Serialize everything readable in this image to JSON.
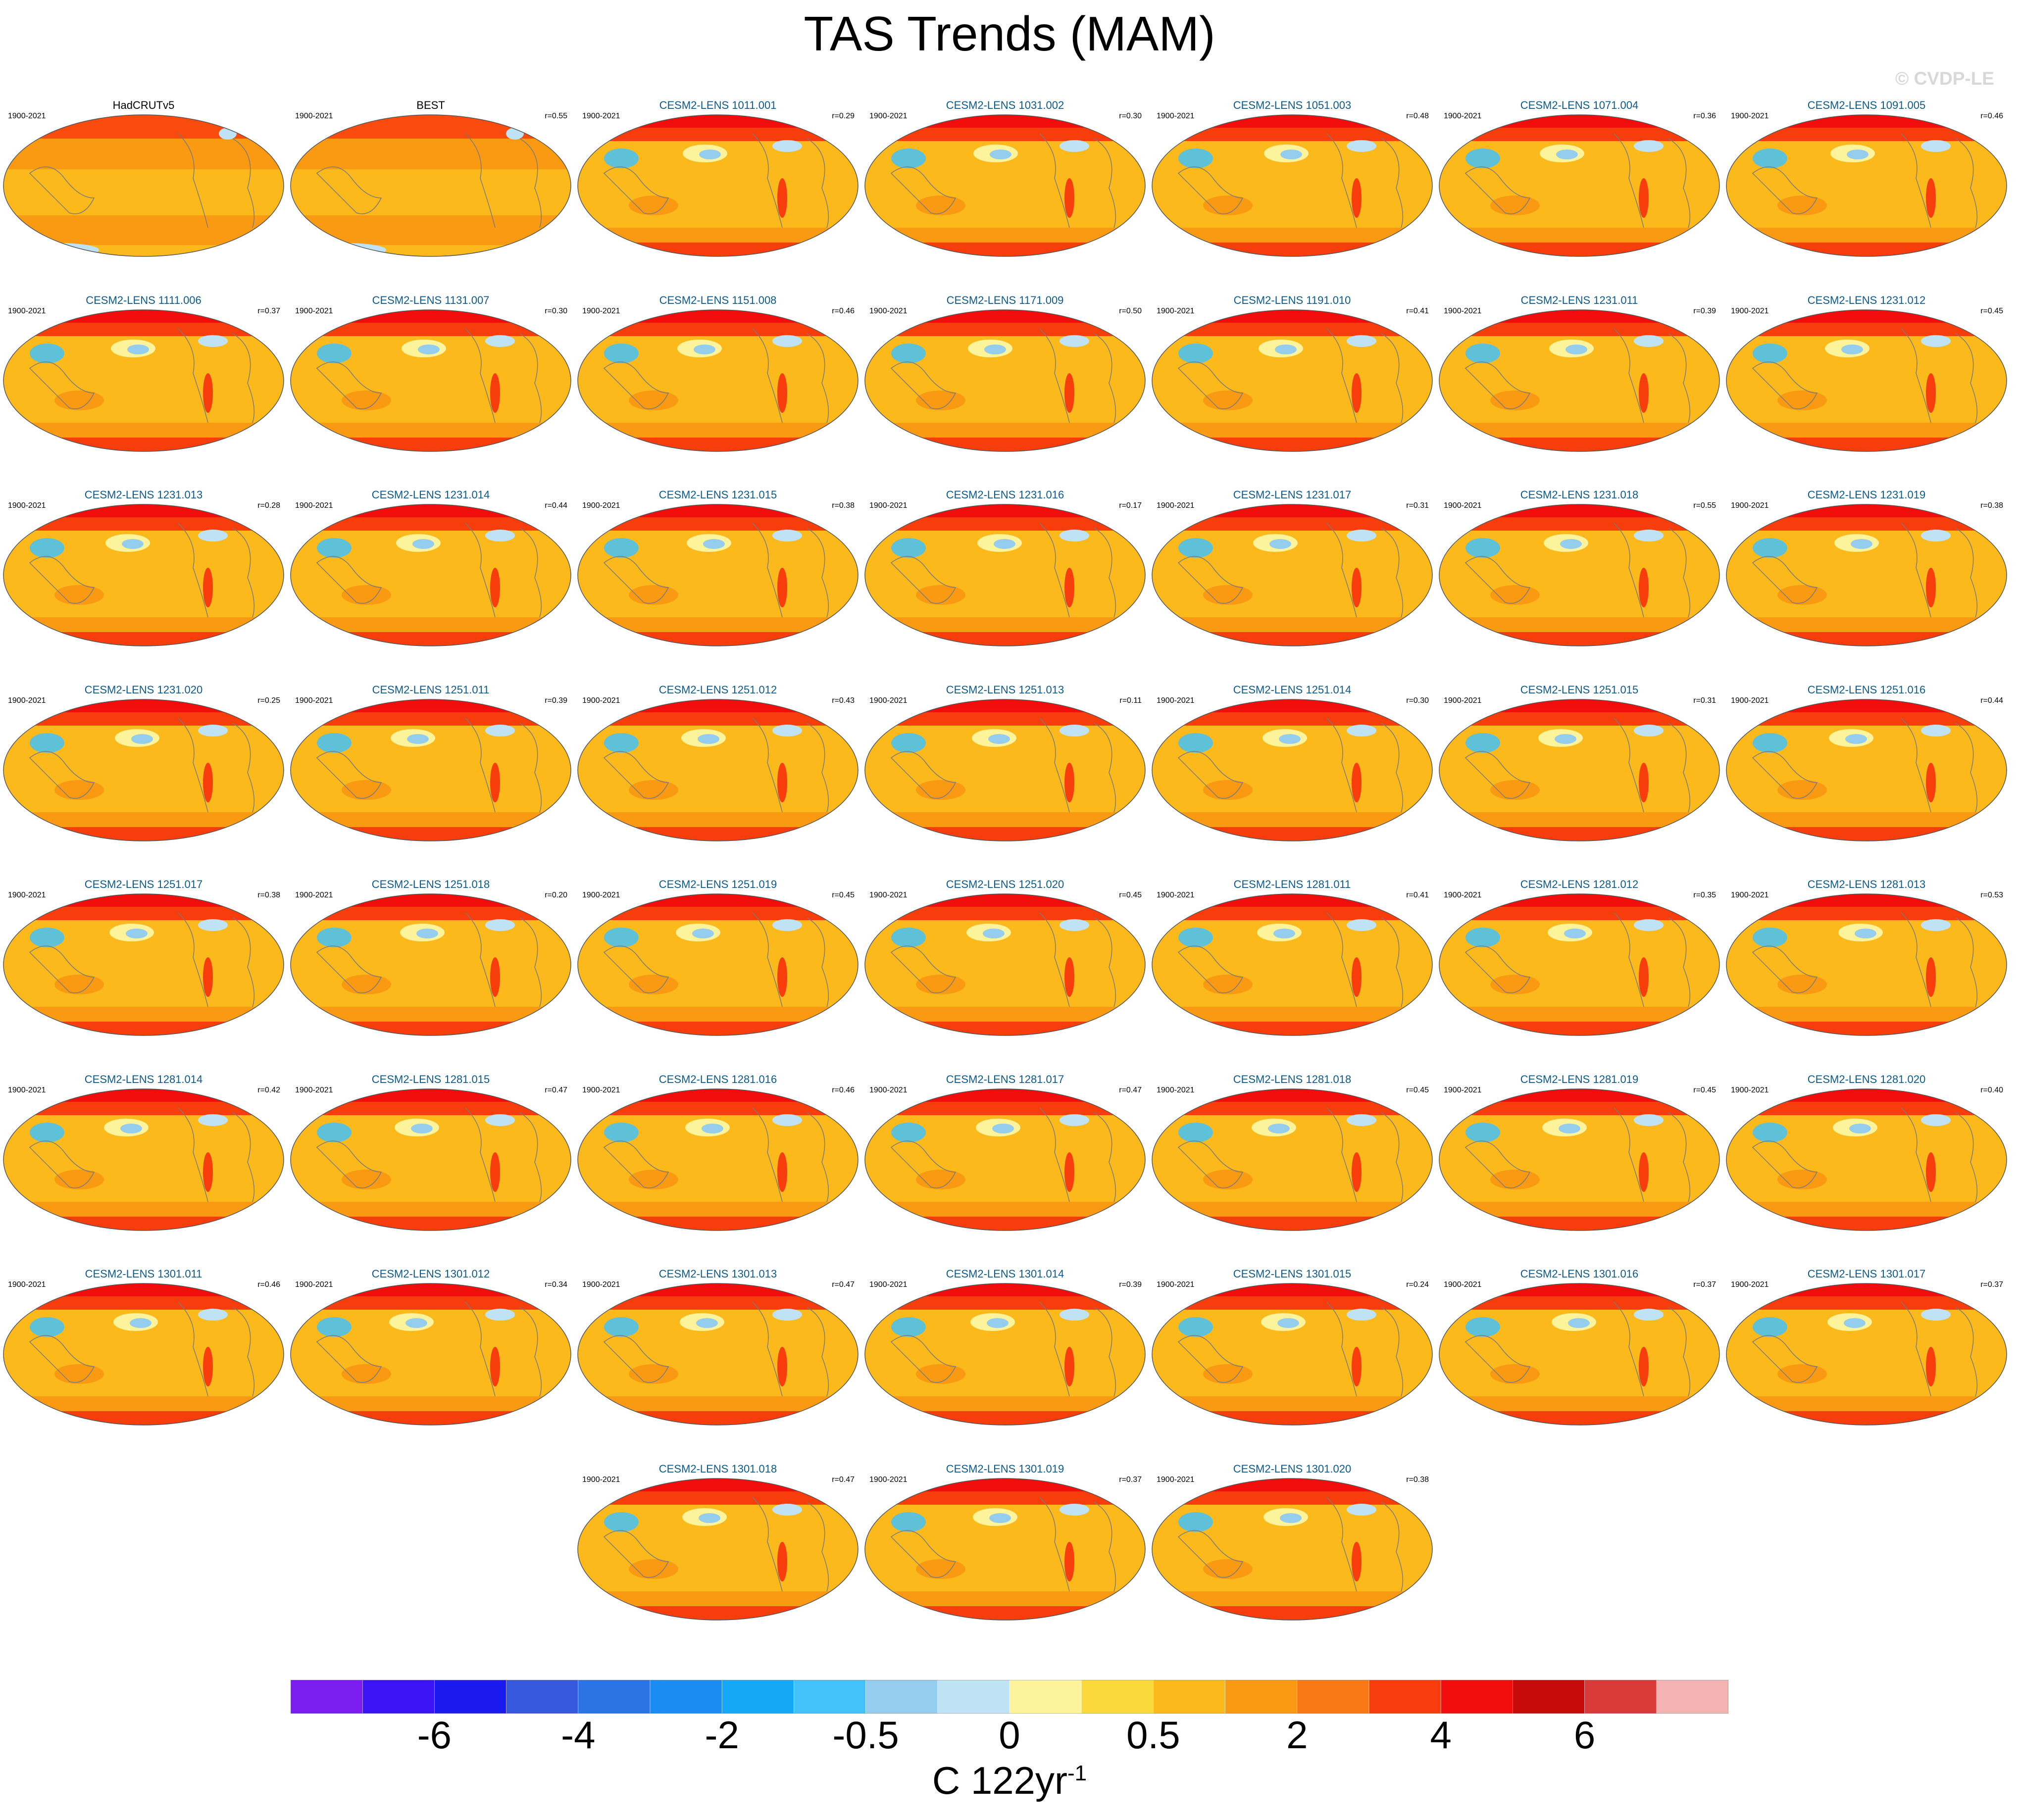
{
  "title": "TAS Trends (MAM)",
  "watermark": "© CVDP-LE",
  "colorbar": {
    "colors": [
      "#7b1df0",
      "#3a14f5",
      "#1a1aef",
      "#3558dc",
      "#2a74e6",
      "#1b8cf2",
      "#16a8f7",
      "#42c2f8",
      "#95cdef",
      "#bfe3f5",
      "#fdf39a",
      "#fcd93a",
      "#fbb91c",
      "#f99a12",
      "#f77814",
      "#f83d0d",
      "#f20d0d",
      "#c70a0a",
      "#d83a3a",
      "#f4b3b3"
    ],
    "tick_labels": [
      "-6",
      "-4",
      "-2",
      "-0.5",
      "0",
      "0.5",
      "2",
      "4",
      "6"
    ],
    "units_main": "C 122yr",
    "units_sup": "-1"
  },
  "chart_data": {
    "type": "map-grid",
    "title": "TAS Trends (MAM)",
    "period": "1900-2021",
    "units": "C 122yr-1",
    "colorbar_levels": [
      "-6",
      "-4",
      "-2",
      "-0.5",
      "0",
      "0.5",
      "2",
      "4",
      "6"
    ],
    "panels": [
      {
        "label": "HadCRUTv5",
        "period": "1900-2021",
        "r": "",
        "obs": true
      },
      {
        "label": "BEST",
        "period": "1900-2021",
        "r": "r=0.55",
        "obs": true
      },
      {
        "label": "CESM2-LENS 1011.001",
        "period": "1900-2021",
        "r": "r=0.29"
      },
      {
        "label": "CESM2-LENS 1031.002",
        "period": "1900-2021",
        "r": "r=0.30"
      },
      {
        "label": "CESM2-LENS 1051.003",
        "period": "1900-2021",
        "r": "r=0.48"
      },
      {
        "label": "CESM2-LENS 1071.004",
        "period": "1900-2021",
        "r": "r=0.36"
      },
      {
        "label": "CESM2-LENS 1091.005",
        "period": "1900-2021",
        "r": "r=0.46"
      },
      {
        "label": "CESM2-LENS 1111.006",
        "period": "1900-2021",
        "r": "r=0.37"
      },
      {
        "label": "CESM2-LENS 1131.007",
        "period": "1900-2021",
        "r": "r=0.30"
      },
      {
        "label": "CESM2-LENS 1151.008",
        "period": "1900-2021",
        "r": "r=0.46"
      },
      {
        "label": "CESM2-LENS 1171.009",
        "period": "1900-2021",
        "r": "r=0.50"
      },
      {
        "label": "CESM2-LENS 1191.010",
        "period": "1900-2021",
        "r": "r=0.41"
      },
      {
        "label": "CESM2-LENS 1231.011",
        "period": "1900-2021",
        "r": "r=0.39"
      },
      {
        "label": "CESM2-LENS 1231.012",
        "period": "1900-2021",
        "r": "r=0.45"
      },
      {
        "label": "CESM2-LENS 1231.013",
        "period": "1900-2021",
        "r": "r=0.28"
      },
      {
        "label": "CESM2-LENS 1231.014",
        "period": "1900-2021",
        "r": "r=0.44"
      },
      {
        "label": "CESM2-LENS 1231.015",
        "period": "1900-2021",
        "r": "r=0.38"
      },
      {
        "label": "CESM2-LENS 1231.016",
        "period": "1900-2021",
        "r": "r=0.17"
      },
      {
        "label": "CESM2-LENS 1231.017",
        "period": "1900-2021",
        "r": "r=0.31"
      },
      {
        "label": "CESM2-LENS 1231.018",
        "period": "1900-2021",
        "r": "r=0.55"
      },
      {
        "label": "CESM2-LENS 1231.019",
        "period": "1900-2021",
        "r": "r=0.38"
      },
      {
        "label": "CESM2-LENS 1231.020",
        "period": "1900-2021",
        "r": "r=0.25"
      },
      {
        "label": "CESM2-LENS 1251.011",
        "period": "1900-2021",
        "r": "r=0.39"
      },
      {
        "label": "CESM2-LENS 1251.012",
        "period": "1900-2021",
        "r": "r=0.43"
      },
      {
        "label": "CESM2-LENS 1251.013",
        "period": "1900-2021",
        "r": "r=0.11"
      },
      {
        "label": "CESM2-LENS 1251.014",
        "period": "1900-2021",
        "r": "r=0.30"
      },
      {
        "label": "CESM2-LENS 1251.015",
        "period": "1900-2021",
        "r": "r=0.31"
      },
      {
        "label": "CESM2-LENS 1251.016",
        "period": "1900-2021",
        "r": "r=0.44"
      },
      {
        "label": "CESM2-LENS 1251.017",
        "period": "1900-2021",
        "r": "r=0.38"
      },
      {
        "label": "CESM2-LENS 1251.018",
        "period": "1900-2021",
        "r": "r=0.20"
      },
      {
        "label": "CESM2-LENS 1251.019",
        "period": "1900-2021",
        "r": "r=0.45"
      },
      {
        "label": "CESM2-LENS 1251.020",
        "period": "1900-2021",
        "r": "r=0.45"
      },
      {
        "label": "CESM2-LENS 1281.011",
        "period": "1900-2021",
        "r": "r=0.41"
      },
      {
        "label": "CESM2-LENS 1281.012",
        "period": "1900-2021",
        "r": "r=0.35"
      },
      {
        "label": "CESM2-LENS 1281.013",
        "period": "1900-2021",
        "r": "r=0.53"
      },
      {
        "label": "CESM2-LENS 1281.014",
        "period": "1900-2021",
        "r": "r=0.42"
      },
      {
        "label": "CESM2-LENS 1281.015",
        "period": "1900-2021",
        "r": "r=0.47"
      },
      {
        "label": "CESM2-LENS 1281.016",
        "period": "1900-2021",
        "r": "r=0.46"
      },
      {
        "label": "CESM2-LENS 1281.017",
        "period": "1900-2021",
        "r": "r=0.47"
      },
      {
        "label": "CESM2-LENS 1281.018",
        "period": "1900-2021",
        "r": "r=0.45"
      },
      {
        "label": "CESM2-LENS 1281.019",
        "period": "1900-2021",
        "r": "r=0.45"
      },
      {
        "label": "CESM2-LENS 1281.020",
        "period": "1900-2021",
        "r": "r=0.40"
      },
      {
        "label": "CESM2-LENS 1301.011",
        "period": "1900-2021",
        "r": "r=0.46"
      },
      {
        "label": "CESM2-LENS 1301.012",
        "period": "1900-2021",
        "r": "r=0.34"
      },
      {
        "label": "CESM2-LENS 1301.013",
        "period": "1900-2021",
        "r": "r=0.47"
      },
      {
        "label": "CESM2-LENS 1301.014",
        "period": "1900-2021",
        "r": "r=0.39"
      },
      {
        "label": "CESM2-LENS 1301.015",
        "period": "1900-2021",
        "r": "r=0.24"
      },
      {
        "label": "CESM2-LENS 1301.016",
        "period": "1900-2021",
        "r": "r=0.37"
      },
      {
        "label": "CESM2-LENS 1301.017",
        "period": "1900-2021",
        "r": "r=0.37"
      },
      {
        "label": "CESM2-LENS 1301.018",
        "period": "1900-2021",
        "r": "r=0.47"
      },
      {
        "label": "CESM2-LENS 1301.019",
        "period": "1900-2021",
        "r": "r=0.37"
      },
      {
        "label": "CESM2-LENS 1301.020",
        "period": "1900-2021",
        "r": "r=0.38"
      }
    ]
  }
}
